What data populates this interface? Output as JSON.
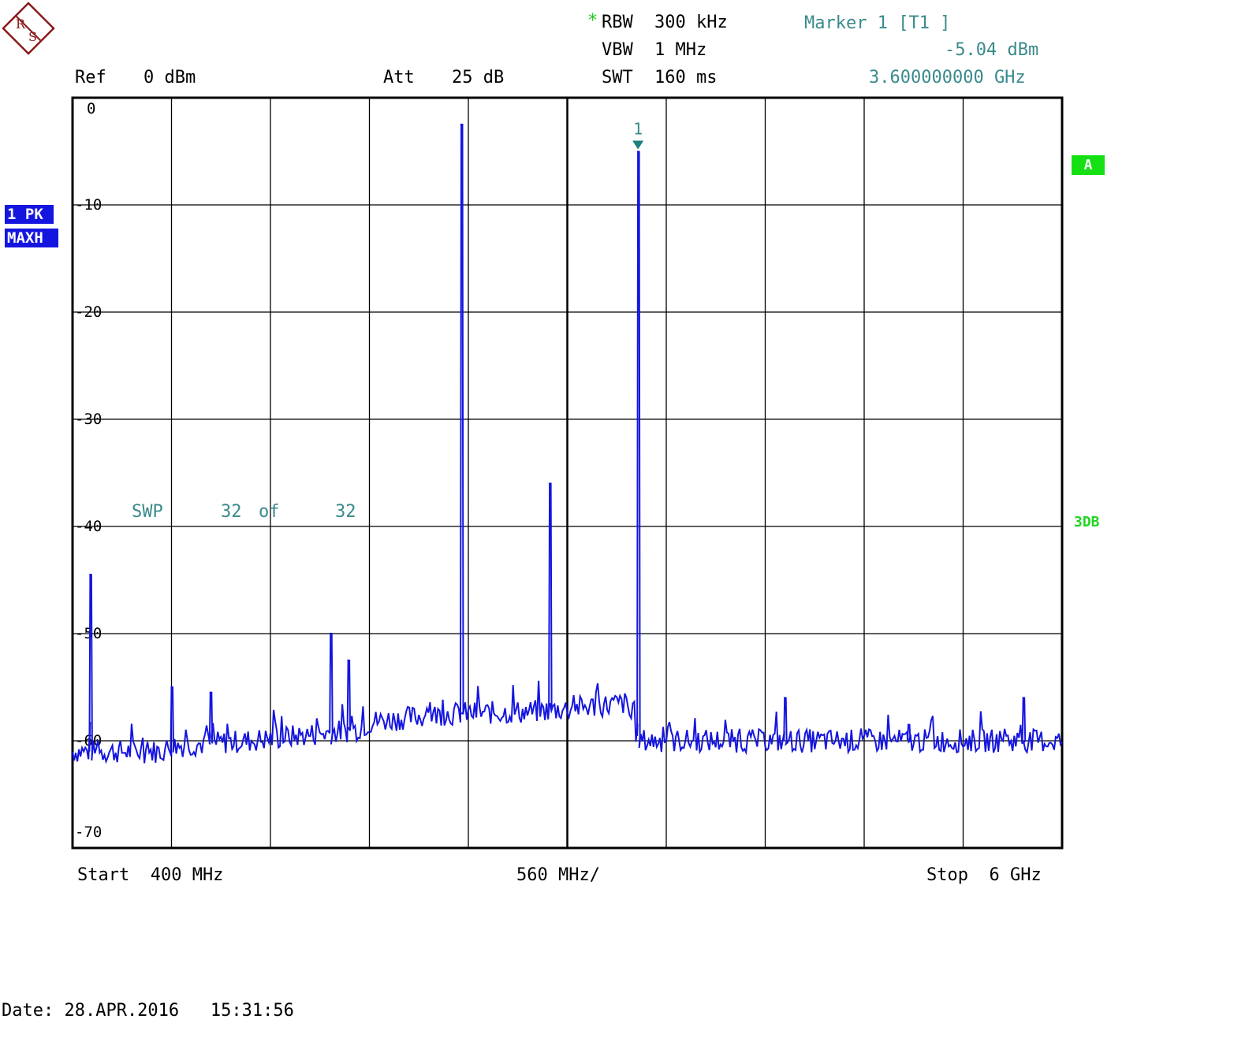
{
  "header": {
    "rbw_label": "RBW",
    "rbw_value": "300 kHz",
    "rbw_flag": "*",
    "vbw_label": "VBW",
    "vbw_value": "1 MHz",
    "swt_label": "SWT",
    "swt_value": "160 ms",
    "ref_label": "Ref",
    "ref_value": "0 dBm",
    "att_label": "Att",
    "att_value": "25 dB",
    "marker_title": "Marker 1 [T1 ]",
    "marker_level": "-5.04 dBm",
    "marker_freq": "3.600000000 GHz"
  },
  "trace_tags": {
    "detector": "1 PK",
    "mode": "MAXH"
  },
  "status": {
    "sweep_label": "SWP",
    "sweep_count": "32",
    "sweep_of": "of",
    "sweep_total": "32",
    "trace_badge": "A",
    "limit_label": "3DB"
  },
  "footer": {
    "start": "Start  400 MHz",
    "span": "560 MHz/",
    "stop": "Stop  6 GHz",
    "date": "Date: 28.APR.2016   15:31:56"
  },
  "colors": {
    "trace": "#1515e0",
    "marker": "#1d7f7f",
    "grid": "#000000",
    "info_text": "#3a8a8c",
    "green": "#22c922"
  },
  "chart_data": {
    "type": "line",
    "title": "",
    "xlabel": "",
    "ylabel": "",
    "x_unit": "MHz",
    "y_unit": "dBm",
    "xlim": [
      400,
      6000
    ],
    "ylim": [
      -70,
      0
    ],
    "x_divisions": 10,
    "y_ticks": [
      0,
      -10,
      -20,
      -30,
      -40,
      -50,
      -60,
      -70
    ],
    "grid": true,
    "noise_floor": [
      [
        400,
        -61
      ],
      [
        900,
        -61
      ],
      [
        960,
        -60.5
      ],
      [
        1400,
        -60
      ],
      [
        2000,
        -59
      ],
      [
        2100,
        -58.2
      ],
      [
        2500,
        -57.5
      ],
      [
        3000,
        -57.3
      ],
      [
        3530,
        -56.5
      ],
      [
        3610,
        -60
      ],
      [
        3800,
        -60
      ],
      [
        4600,
        -60
      ],
      [
        6000,
        -60
      ]
    ],
    "peaks": [
      {
        "x": 500,
        "y": -44.5
      },
      {
        "x": 960,
        "y": -55
      },
      {
        "x": 1180,
        "y": -55.5
      },
      {
        "x": 1860,
        "y": -50
      },
      {
        "x": 1960,
        "y": -52.5
      },
      {
        "x": 2600,
        "y": -2.5
      },
      {
        "x": 3100,
        "y": -36
      },
      {
        "x": 3600,
        "y": -5.04
      },
      {
        "x": 4430,
        "y": -56
      },
      {
        "x": 5130,
        "y": -58.5
      },
      {
        "x": 5780,
        "y": -56
      }
    ],
    "marker": {
      "name": "1",
      "x": 3600,
      "y": -5.04
    }
  }
}
